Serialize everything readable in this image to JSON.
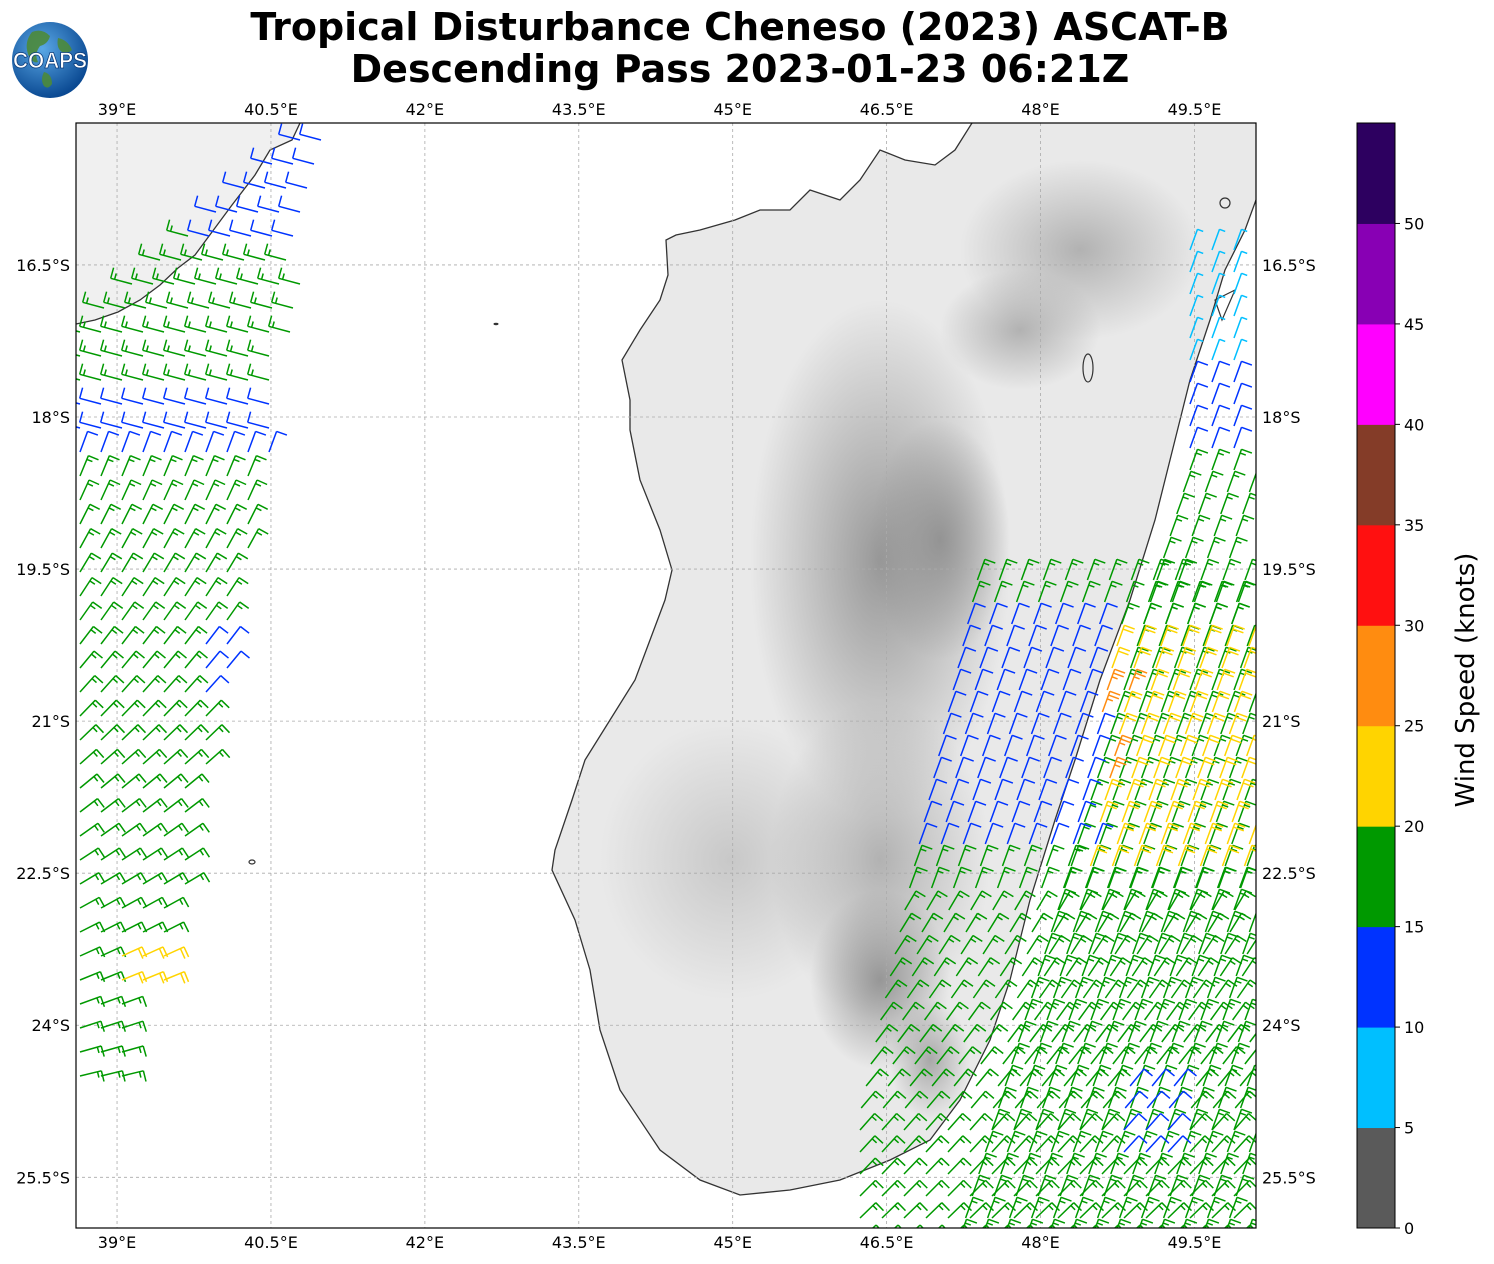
{
  "title": {
    "line1": "Tropical Disturbance Cheneso (2023) ASCAT-B",
    "line2": "Descending Pass 2023-01-23 06:21Z"
  },
  "logo": {
    "text": "COAPS",
    "icon": "globe-icon"
  },
  "map": {
    "lon_range": [
      38.6,
      50.1
    ],
    "lat_range": [
      -26.0,
      -15.1
    ],
    "lon_ticks": [
      "39°E",
      "40.5°E",
      "42°E",
      "43.5°E",
      "45°E",
      "46.5°E",
      "48°E",
      "49.5°E"
    ],
    "lat_ticks": [
      "16.5°S",
      "18°S",
      "19.5°S",
      "21°S",
      "22.5°S",
      "24°S",
      "25.5°S"
    ],
    "gridlines": true,
    "background": "grayscale topography",
    "land": "Madagascar"
  },
  "colorbar": {
    "label": "Wind Speed (knots)",
    "ticks": [
      "0",
      "5",
      "10",
      "15",
      "20",
      "25",
      "30",
      "35",
      "40",
      "45",
      "50"
    ],
    "colors": [
      "#5a5a5a",
      "#00bfff",
      "#0033ff",
      "#009900",
      "#ffd400",
      "#ff8c10",
      "#ff1010",
      "#843c28",
      "#ff00ff",
      "#8800b4",
      "#2d0060"
    ]
  },
  "chart_data": {
    "type": "scatter",
    "variable": "wind barbs",
    "swaths": [
      {
        "name": "west swath",
        "lon_range": [
          38.6,
          41.8
        ],
        "lat_range": [
          -24.8,
          -15.1
        ],
        "dominant_speed_knots": "15-20",
        "notes": "blue barbs near 18S and 20.5S, yellow near 23.5S"
      },
      {
        "name": "east swath",
        "lon_range": [
          46.4,
          50.1
        ],
        "lat_range": [
          -26.0,
          -16.3
        ],
        "dominant_speed_knots": "15-25",
        "notes": "light blue near 17S, blue along coast 20-22S, yellow and orange 20.5-23.5S"
      }
    ]
  }
}
